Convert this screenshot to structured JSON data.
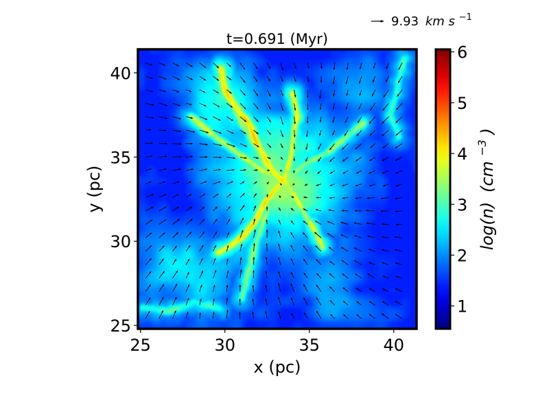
{
  "chart_data": {
    "type": "heatmap",
    "title": "t=0.691 (Myr)",
    "xlabel": "x (pc)",
    "ylabel": "y (pc)",
    "xlim": [
      24.85,
      41.35
    ],
    "ylim": [
      24.8,
      41.4
    ],
    "xticks": [
      {
        "value": 25,
        "label": "25"
      },
      {
        "value": 30,
        "label": "30"
      },
      {
        "value": 35,
        "label": "35"
      },
      {
        "value": 40,
        "label": "40"
      }
    ],
    "yticks": [
      {
        "value": 25,
        "label": "25"
      },
      {
        "value": 30,
        "label": "30"
      },
      {
        "value": 35,
        "label": "35"
      },
      {
        "value": 40,
        "label": "40"
      }
    ],
    "colorbar": {
      "label_main": "log(n)",
      "label_unit": "(cm",
      "label_exp": "−3",
      "label_close": ")",
      "colormap": "jet",
      "range": [
        0.55,
        6.05
      ],
      "ticks": [
        {
          "value": 1,
          "label": "1"
        },
        {
          "value": 2,
          "label": "2"
        },
        {
          "value": 3,
          "label": "3"
        },
        {
          "value": 4,
          "label": "4"
        },
        {
          "value": 5,
          "label": "5"
        },
        {
          "value": 6,
          "label": "6"
        }
      ]
    },
    "quiver_key": {
      "value_text": "9.93",
      "unit_text": "km s",
      "unit_exp": "−1"
    },
    "density_field": {
      "background_log_n": 1.4,
      "filaments": [
        {
          "points": [
            [
              33.4,
              33.6
            ],
            [
              32.8,
              34.2
            ],
            [
              32.3,
              35.1
            ],
            [
              31.8,
              36.0
            ],
            [
              31.4,
              37.0
            ],
            [
              30.6,
              38.0
            ],
            [
              30.0,
              39.0
            ],
            [
              29.8,
              40.2
            ]
          ],
          "peak": 4.2,
          "width": 0.35
        },
        {
          "points": [
            [
              33.5,
              33.6
            ],
            [
              33.8,
              34.6
            ],
            [
              34.0,
              35.6
            ],
            [
              34.1,
              36.6
            ],
            [
              34.3,
              37.5
            ],
            [
              34.0,
              38.8
            ]
          ],
          "peak": 4.0,
          "width": 0.3
        },
        {
          "points": [
            [
              33.4,
              33.5
            ],
            [
              32.9,
              33.0
            ],
            [
              32.4,
              32.3
            ],
            [
              31.8,
              31.2
            ],
            [
              31.2,
              30.4
            ],
            [
              30.4,
              29.8
            ],
            [
              29.6,
              29.3
            ]
          ],
          "peak": 4.1,
          "width": 0.3
        },
        {
          "points": [
            [
              33.6,
              33.5
            ],
            [
              34.2,
              32.6
            ],
            [
              34.8,
              31.5
            ],
            [
              35.4,
              30.5
            ],
            [
              35.8,
              29.6
            ]
          ],
          "peak": 3.8,
          "width": 0.3
        },
        {
          "points": [
            [
              33.4,
              33.6
            ],
            [
              32.2,
              34.2
            ],
            [
              30.8,
              35.2
            ],
            [
              29.2,
              36.4
            ],
            [
              28.0,
              37.4
            ]
          ],
          "peak": 3.6,
          "width": 0.3
        },
        {
          "points": [
            [
              33.4,
              33.6
            ],
            [
              32.4,
              34.5
            ],
            [
              31.3,
              36.5
            ],
            [
              30.6,
              37.6
            ]
          ],
          "peak": 3.5,
          "width": 0.25
        },
        {
          "points": [
            [
              33.6,
              33.7
            ],
            [
              34.8,
              34.6
            ],
            [
              36.0,
              35.2
            ],
            [
              37.2,
              36.2
            ],
            [
              38.2,
              37.0
            ]
          ],
          "peak": 3.4,
          "width": 0.3
        },
        {
          "points": [
            [
              33.5,
              33.4
            ],
            [
              32.6,
              32.0
            ],
            [
              31.8,
              29.8
            ],
            [
              31.4,
              28.2
            ],
            [
              31.0,
              26.6
            ]
          ],
          "peak": 3.3,
          "width": 0.3
        },
        {
          "points": [
            [
              40.6,
              40.8
            ],
            [
              40.2,
              39.0
            ],
            [
              39.8,
              37.5
            ],
            [
              40.3,
              36.2
            ]
          ],
          "peak": 3.0,
          "width": 0.3
        },
        {
          "points": [
            [
              25.2,
              26.1
            ],
            [
              26.6,
              25.8
            ],
            [
              28.2,
              26.4
            ],
            [
              29.6,
              26.0
            ]
          ],
          "peak": 2.9,
          "width": 0.35
        }
      ],
      "blobs": [
        {
          "x": 33.4,
          "y": 33.6,
          "r": 2.8,
          "amp": 1.9
        },
        {
          "x": 29.5,
          "y": 38.6,
          "r": 1.6,
          "amp": 1.2
        },
        {
          "x": 26.4,
          "y": 29.0,
          "r": 1.4,
          "amp": 0.8
        },
        {
          "x": 38.6,
          "y": 39.6,
          "r": 1.2,
          "amp": 0.7
        },
        {
          "x": 28.6,
          "y": 27.4,
          "r": 1.6,
          "amp": 0.8
        },
        {
          "x": 36.4,
          "y": 27.2,
          "r": 1.6,
          "amp": 0.6
        },
        {
          "x": 26.0,
          "y": 36.2,
          "r": 1.2,
          "amp": -0.6
        },
        {
          "x": 39.8,
          "y": 31.0,
          "r": 1.6,
          "amp": -0.5
        }
      ]
    },
    "velocity_field": {
      "center": [
        33.4,
        33.6
      ],
      "grid_x": [
        25.3,
        26.1,
        26.9,
        27.7,
        28.5,
        29.3,
        30.1,
        30.9,
        31.7,
        32.5,
        33.3,
        34.1,
        34.9,
        35.7,
        36.5,
        37.3,
        38.1,
        38.9,
        39.7,
        40.5
      ],
      "grid_y": [
        25.4,
        26.2,
        27.0,
        27.8,
        28.6,
        29.4,
        30.2,
        31.0,
        31.8,
        32.6,
        33.4,
        34.2,
        35.0,
        35.8,
        36.6,
        37.4,
        38.2,
        39.0,
        39.8,
        40.6
      ],
      "infall_speed_kms": 8.0,
      "rotation_kms": 2.0
    },
    "colors": {
      "arrow": "#000000",
      "frame": "#000000"
    }
  }
}
